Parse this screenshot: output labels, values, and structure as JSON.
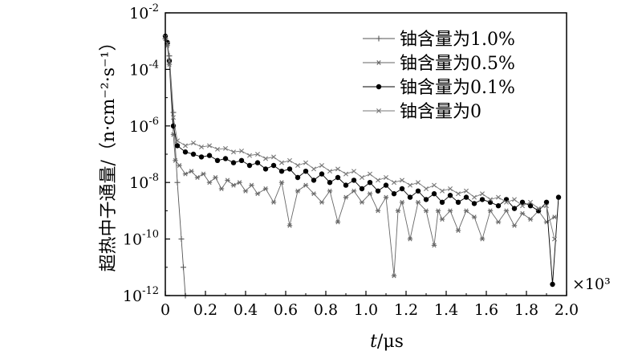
{
  "chart_data": {
    "type": "line",
    "xlabel": "t/μs",
    "ylabel": "超热中子通量/（n·cm⁻²·s⁻¹）",
    "x_multiplier": "×10³",
    "xlim": [
      0,
      2.0
    ],
    "ylim": [
      1e-12,
      0.01
    ],
    "yscale": "log",
    "x_ticks": [
      "0",
      "0.2",
      "0.4",
      "0.6",
      "0.8",
      "1.0",
      "1.2",
      "1.4",
      "1.6",
      "1.8",
      "2.0"
    ],
    "y_ticks": [
      {
        "base": "10",
        "exp": "-12",
        "value": 1e-12
      },
      {
        "base": "10",
        "exp": "-10",
        "value": 1e-10
      },
      {
        "base": "10",
        "exp": "-8",
        "value": 1e-08
      },
      {
        "base": "10",
        "exp": "-6",
        "value": 1e-06
      },
      {
        "base": "10",
        "exp": "-4",
        "value": 0.0001
      },
      {
        "base": "10",
        "exp": "-2",
        "value": 0.01
      }
    ],
    "legend_position": "top-right",
    "series": [
      {
        "name": "铀含量为1.0%",
        "marker": "plus",
        "color": "#555555",
        "x": [
          0.0,
          0.01,
          0.02,
          0.04,
          0.06,
          0.08,
          0.09,
          0.1
        ],
        "y": [
          0.0012,
          0.0008,
          0.0003,
          3e-06,
          1e-08,
          1e-10,
          1e-11,
          1e-12
        ]
      },
      {
        "name": "铀含量为0.5%",
        "marker": "star",
        "color": "#666666",
        "x": [
          0.0,
          0.01,
          0.02,
          0.04,
          0.05,
          0.07,
          0.1,
          0.13,
          0.16,
          0.19,
          0.22,
          0.25,
          0.28,
          0.31,
          0.34,
          0.37,
          0.4,
          0.43,
          0.46,
          0.5,
          0.54,
          0.58,
          0.62,
          0.66,
          0.7,
          0.74,
          0.78,
          0.82,
          0.86,
          0.9,
          0.94,
          0.98,
          1.02,
          1.06,
          1.1,
          1.14,
          1.16,
          1.18,
          1.22,
          1.26,
          1.3,
          1.34,
          1.36,
          1.38,
          1.42,
          1.46,
          1.5,
          1.54,
          1.58,
          1.62,
          1.66,
          1.7,
          1.74,
          1.78,
          1.82,
          1.86,
          1.9,
          1.94
        ],
        "y": [
          0.0012,
          0.0007,
          0.00015,
          5e-07,
          6e-08,
          4e-08,
          2e-08,
          2.5e-08,
          1.5e-08,
          2e-08,
          1e-08,
          1.5e-08,
          6e-09,
          1.2e-08,
          8e-09,
          1e-08,
          5e-09,
          8e-09,
          4e-09,
          6e-09,
          2e-09,
          1e-08,
          3e-10,
          5e-09,
          8e-09,
          4e-09,
          2e-09,
          5e-09,
          4e-10,
          3e-09,
          5e-09,
          2e-09,
          4e-09,
          1e-09,
          3e-09,
          5e-12,
          1e-09,
          2e-09,
          1e-10,
          2e-09,
          1e-09,
          6e-11,
          1e-09,
          5e-10,
          1e-09,
          2e-10,
          1e-09,
          6e-10,
          1e-10,
          1e-09,
          4e-10,
          1e-09,
          3e-10,
          8e-10,
          5e-10,
          1e-09,
          4e-10,
          6e-10
        ]
      },
      {
        "name": "铀含量为0.1%",
        "marker": "dot",
        "color": "#000000",
        "x": [
          0.0,
          0.01,
          0.02,
          0.04,
          0.06,
          0.1,
          0.14,
          0.18,
          0.22,
          0.26,
          0.3,
          0.34,
          0.38,
          0.42,
          0.46,
          0.5,
          0.54,
          0.58,
          0.62,
          0.66,
          0.7,
          0.74,
          0.78,
          0.82,
          0.86,
          0.9,
          0.94,
          0.98,
          1.02,
          1.06,
          1.1,
          1.14,
          1.18,
          1.22,
          1.26,
          1.3,
          1.34,
          1.38,
          1.42,
          1.46,
          1.5,
          1.54,
          1.58,
          1.62,
          1.66,
          1.7,
          1.74,
          1.78,
          1.82,
          1.86,
          1.9,
          1.93,
          1.96
        ],
        "y": [
          0.0015,
          0.0009,
          0.0002,
          1e-06,
          2e-07,
          1.2e-07,
          1e-07,
          8e-08,
          9e-08,
          6e-08,
          7e-08,
          5e-08,
          6e-08,
          4e-08,
          5e-08,
          3e-08,
          4e-08,
          2.5e-08,
          3e-08,
          1.5e-08,
          2.5e-08,
          1.2e-08,
          2e-08,
          1e-08,
          1.5e-08,
          8e-09,
          1.2e-08,
          6e-09,
          1e-08,
          5e-09,
          8e-09,
          4e-09,
          6e-09,
          3e-09,
          5e-09,
          2.5e-09,
          4e-09,
          2e-09,
          3.5e-09,
          2e-09,
          3e-09,
          1.8e-09,
          2.5e-09,
          2e-09,
          1.5e-09,
          2.5e-09,
          1.2e-09,
          2e-09,
          1.5e-09,
          1e-09,
          2e-09,
          2.5e-12,
          3e-09
        ]
      },
      {
        "name": "铀含量为0",
        "marker": "x",
        "color": "#777777",
        "x": [
          0.0,
          0.01,
          0.02,
          0.04,
          0.06,
          0.1,
          0.14,
          0.18,
          0.22,
          0.26,
          0.3,
          0.34,
          0.38,
          0.42,
          0.46,
          0.5,
          0.54,
          0.58,
          0.62,
          0.66,
          0.7,
          0.74,
          0.78,
          0.82,
          0.86,
          0.9,
          0.94,
          0.98,
          1.02,
          1.06,
          1.1,
          1.14,
          1.18,
          1.22,
          1.26,
          1.3,
          1.34,
          1.38,
          1.42,
          1.46,
          1.5,
          1.54,
          1.58,
          1.62,
          1.66,
          1.7,
          1.74,
          1.78,
          1.82,
          1.86,
          1.9,
          1.94
        ],
        "y": [
          0.0014,
          0.0008,
          0.0002,
          2e-06,
          3e-07,
          2e-07,
          2.5e-07,
          1.8e-07,
          2e-07,
          1.5e-07,
          1.6e-07,
          1.2e-07,
          1.3e-07,
          9e-08,
          1e-07,
          7e-08,
          8e-08,
          5e-08,
          6e-08,
          4e-08,
          5e-08,
          3e-08,
          4e-08,
          2.5e-08,
          3e-08,
          2e-08,
          2.5e-08,
          1.5e-08,
          2e-08,
          1.2e-08,
          1.5e-08,
          1e-08,
          1.2e-08,
          8e-09,
          1e-08,
          6e-09,
          8e-09,
          5e-09,
          6e-09,
          4e-09,
          5e-09,
          3e-09,
          4e-09,
          2.5e-09,
          3e-09,
          2e-09,
          2.5e-09,
          1.5e-09,
          2e-09,
          1.2e-09,
          1.5e-09,
          1e-10
        ]
      }
    ]
  }
}
